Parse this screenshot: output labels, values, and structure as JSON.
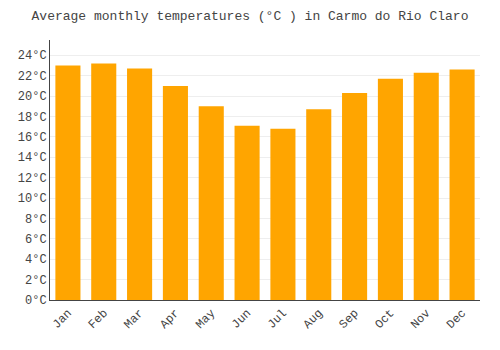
{
  "chart_data": {
    "type": "bar",
    "title": "Average monthly temperatures (°C ) in Carmo do Rio Claro",
    "categories": [
      "Jan",
      "Feb",
      "Mar",
      "Apr",
      "May",
      "Jun",
      "Jul",
      "Aug",
      "Sep",
      "Oct",
      "Nov",
      "Dec"
    ],
    "values": [
      23.0,
      23.2,
      22.7,
      21.0,
      19.0,
      17.1,
      16.8,
      18.7,
      20.3,
      21.7,
      22.3,
      22.6
    ],
    "color": "#FFA500",
    "ylim": [
      0,
      25.5
    ],
    "yticks": [
      {
        "value": 0,
        "label": "0°C"
      },
      {
        "value": 2,
        "label": "2°C"
      },
      {
        "value": 4,
        "label": "4°C"
      },
      {
        "value": 6,
        "label": "6°C"
      },
      {
        "value": 8,
        "label": "8°C"
      },
      {
        "value": 10,
        "label": "10°C"
      },
      {
        "value": 12,
        "label": "12°C"
      },
      {
        "value": 14,
        "label": "14°C"
      },
      {
        "value": 16,
        "label": "16°C"
      },
      {
        "value": 18,
        "label": "18°C"
      },
      {
        "value": 20,
        "label": "20°C"
      },
      {
        "value": 22,
        "label": "22°C"
      },
      {
        "value": 24,
        "label": "24°C"
      }
    ],
    "grid": true
  }
}
